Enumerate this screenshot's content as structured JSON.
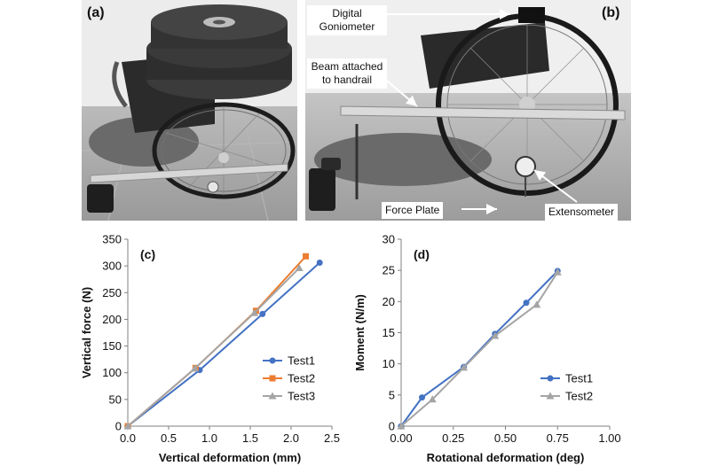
{
  "figure": {
    "panel_a": {
      "tag": "(a)"
    },
    "panel_b": {
      "tag": "(b)",
      "callouts": {
        "goniometer": "Digital Goniometer",
        "beam": "Beam attached to handrail",
        "force_plate": "Force Plate",
        "extensometer": "Extensometer"
      }
    }
  },
  "colors": {
    "test1": "#4472c4",
    "test2": "#ed7d31",
    "test3": "#a5a5a5",
    "axis": "#808080",
    "photo_bg": "#8a8a8a"
  },
  "chart_data": [
    {
      "type": "line",
      "tag": "(c)",
      "title": "",
      "xlabel": "Vertical deformation (mm)",
      "ylabel": "Vertical force (N)",
      "xlim": [
        0,
        2.5
      ],
      "ylim": [
        0,
        350
      ],
      "xticks": [
        "0.0",
        "0.5",
        "1.0",
        "1.5",
        "2.0",
        "2.5"
      ],
      "yticks": [
        "0",
        "50",
        "100",
        "150",
        "200",
        "250",
        "300",
        "350"
      ],
      "legend": "bottom-right",
      "grid": false,
      "series": [
        {
          "name": "Test1",
          "marker": "circle",
          "x": [
            0,
            0.88,
            1.65,
            2.35
          ],
          "y": [
            0,
            105,
            210,
            306
          ]
        },
        {
          "name": "Test2",
          "marker": "square",
          "x": [
            0,
            0.83,
            1.57,
            2.18
          ],
          "y": [
            0,
            109,
            216,
            318
          ]
        },
        {
          "name": "Test3",
          "marker": "triangle",
          "x": [
            0,
            0.82,
            1.55,
            2.1
          ],
          "y": [
            0,
            108,
            212,
            296
          ]
        }
      ]
    },
    {
      "type": "line",
      "tag": "(d)",
      "title": "",
      "xlabel": "Rotational deformation (deg)",
      "ylabel": "Moment (N/m)",
      "xlim": [
        0,
        1.0
      ],
      "ylim": [
        0,
        30
      ],
      "xticks": [
        "0.00",
        "0.25",
        "0.50",
        "0.75",
        "1.00"
      ],
      "yticks": [
        "0",
        "5",
        "10",
        "15",
        "20",
        "25",
        "30"
      ],
      "legend": "bottom-right",
      "grid": false,
      "series": [
        {
          "name": "Test1",
          "marker": "circle",
          "x": [
            0,
            0.1,
            0.3,
            0.45,
            0.6,
            0.75
          ],
          "y": [
            0,
            4.6,
            9.5,
            14.8,
            19.8,
            24.9
          ]
        },
        {
          "name": "Test2",
          "marker": "triangle",
          "x": [
            0,
            0.15,
            0.3,
            0.45,
            0.65,
            0.75
          ],
          "y": [
            0,
            4.3,
            9.4,
            14.5,
            19.5,
            24.7
          ]
        }
      ]
    }
  ]
}
